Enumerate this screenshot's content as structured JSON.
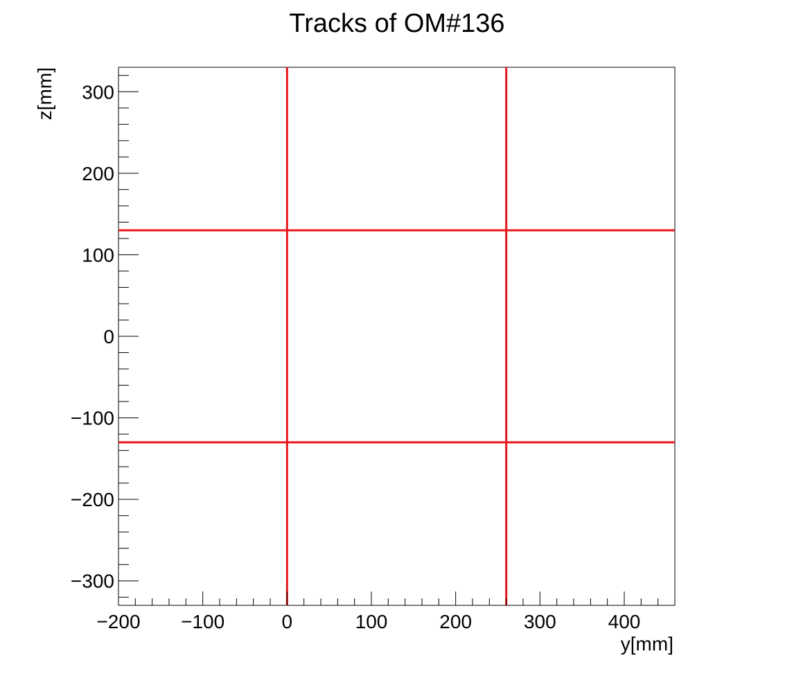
{
  "chart_data": {
    "type": "line",
    "title": "Tracks of OM#136",
    "xlabel": "y[mm]",
    "ylabel": "z[mm]",
    "xlim": [
      -200,
      460
    ],
    "ylim": [
      -330,
      330
    ],
    "grid": false,
    "x_ticks": [
      -200,
      -100,
      0,
      100,
      200,
      300,
      400
    ],
    "x_tick_labels": [
      "−200",
      "−100",
      "0",
      "100",
      "200",
      "300",
      "400"
    ],
    "y_ticks": [
      -300,
      -200,
      -100,
      0,
      100,
      200,
      300
    ],
    "y_tick_labels": [
      "−300",
      "−200",
      "−100",
      "0",
      "100",
      "200",
      "300"
    ],
    "vertical_lines": [
      0,
      260
    ],
    "horizontal_lines": [
      130,
      -130
    ],
    "line_color": "#e8171b"
  }
}
